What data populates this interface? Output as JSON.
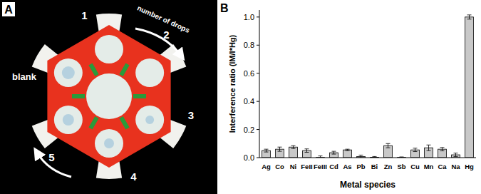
{
  "panels": {
    "a": {
      "label": "A",
      "blank": "blank",
      "arrow_text": "number of drops",
      "spots": [
        "1",
        "2",
        "3",
        "4",
        "5"
      ]
    },
    "b": {
      "label": "B"
    }
  },
  "chart_data": {
    "type": "bar",
    "categories": [
      "Ag",
      "Co",
      "Ni",
      "FeII",
      "FeIII",
      "Cd",
      "As",
      "Pb",
      "Bi",
      "Zn",
      "Sb",
      "Cu",
      "Mn",
      "Ca",
      "Na",
      "Hg"
    ],
    "values": [
      0.05,
      0.06,
      0.075,
      0.05,
      0.002,
      0.035,
      0.055,
      0.008,
      0.003,
      0.085,
      0.002,
      0.055,
      0.07,
      0.06,
      0.02,
      1.0
    ],
    "errors": [
      0.01,
      0.015,
      0.01,
      0.012,
      0.01,
      0.01,
      0.005,
      0.01,
      0.005,
      0.015,
      0.003,
      0.012,
      0.02,
      0.012,
      0.012,
      0.015
    ],
    "color": "#c8c8c8",
    "xlabel": "Metal species",
    "ylabel": "Interference ratio (IM/I*Hg)",
    "ylim": [
      0,
      1.05
    ],
    "yticks": [
      {
        "value": 0,
        "label": "0.0"
      },
      0.2,
      0.4,
      0.6,
      0.8,
      {
        "value": 1,
        "label": "1.0"
      }
    ],
    "grid": false
  }
}
